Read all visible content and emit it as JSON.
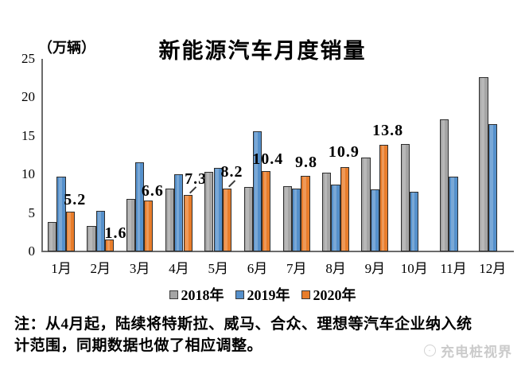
{
  "chart_data": {
    "type": "bar",
    "title": "新能源汽车月度销量",
    "unit": "（万辆）",
    "xlabel": "",
    "ylabel": "万辆",
    "ylim": [
      0,
      25
    ],
    "y_ticks": [
      0,
      5,
      10,
      15,
      20,
      25
    ],
    "grid": false,
    "legend_position": "bottom",
    "categories": [
      "1月",
      "2月",
      "3月",
      "4月",
      "5月",
      "6月",
      "7月",
      "8月",
      "9月",
      "10月",
      "11月",
      "12月"
    ],
    "series": [
      {
        "name": "2018年",
        "color": "#a5a5a5",
        "values": [
          3.8,
          3.3,
          6.8,
          8.2,
          10.3,
          8.4,
          8.5,
          10.2,
          12.2,
          13.9,
          17.1,
          22.6
        ]
      },
      {
        "name": "2019年",
        "color": "#5590cb",
        "values": [
          9.7,
          5.3,
          11.6,
          10.0,
          10.8,
          15.6,
          8.2,
          8.7,
          8.1,
          7.7,
          9.7,
          16.5
        ]
      },
      {
        "name": "2020年",
        "color": "#e87d2b",
        "values": [
          5.2,
          1.6,
          6.6,
          7.3,
          8.2,
          10.4,
          9.8,
          10.9,
          13.8,
          null,
          null,
          null
        ],
        "data_labels": [
          "5.2",
          "1.6",
          "6.6",
          "7.3",
          "8.2",
          "10.4",
          "9.8",
          "10.9",
          "13.8"
        ],
        "leader_line_months": [
          "4月",
          "5月"
        ]
      }
    ]
  },
  "note_lines": [
    "注：从4月起，陆续将特斯拉、威马、合众、理想等汽车企业纳入统",
    "计范围，同期数据也做了相应调整。"
  ],
  "watermark": {
    "label": "充电桩视界"
  }
}
